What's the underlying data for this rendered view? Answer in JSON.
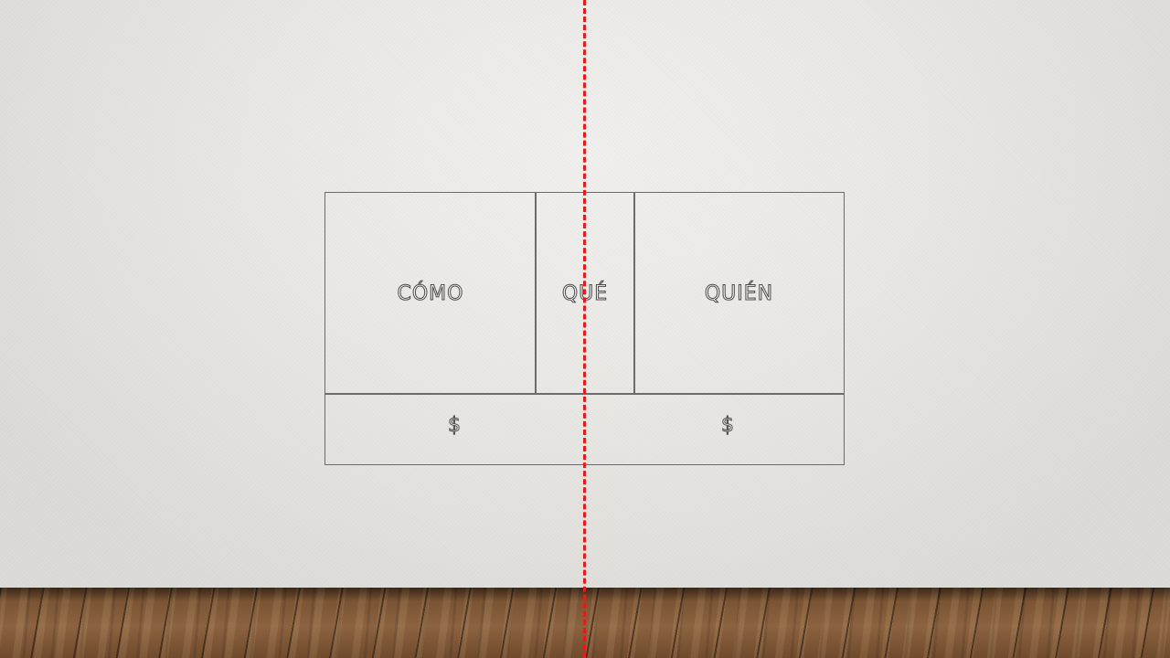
{
  "diagram": {
    "cells": {
      "como": "CÓMO",
      "que": "QUÉ",
      "quien": "QUIÉN"
    },
    "bottom": {
      "left_symbol": "$",
      "right_symbol": "$"
    }
  },
  "colors": {
    "divider_line": "#e21b1b",
    "cell_border": "#6b6b6b",
    "wall": "#e9e8e5",
    "floor": "#7a5434"
  }
}
